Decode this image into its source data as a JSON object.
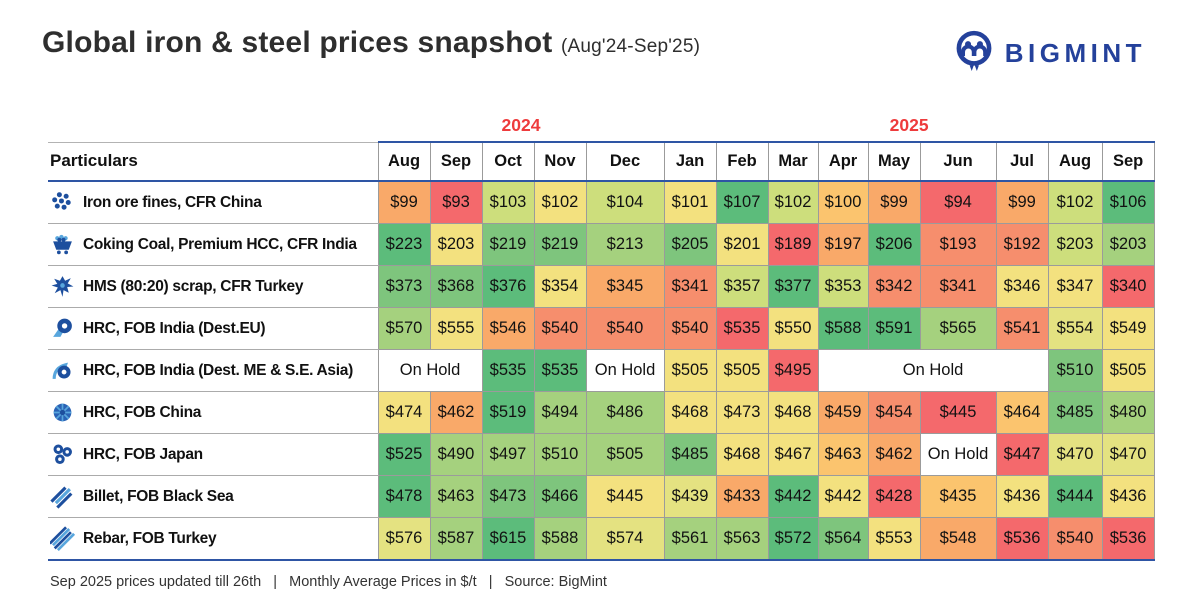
{
  "header": {
    "title": "Global iron & steel prices snapshot",
    "subtitle": "(Aug'24-Sep'25)",
    "brand": "BIGMINT"
  },
  "colors": {
    "accent_red": "#ee3b3c",
    "brand_navy": "#24419b",
    "rule_blue": "#2e55a4",
    "rule_gray": "#9b9b9b",
    "palette": {
      "g1": "#5cbc7b",
      "g2": "#7ec57d",
      "g3": "#a5d17e",
      "g4": "#cdde7c",
      "y1": "#e4e281",
      "y2": "#f3e17f",
      "o1": "#fbc46e",
      "o2": "#f9a969",
      "o3": "#f68e6d",
      "r1": "#f4696c",
      "hold": "#ffffff"
    }
  },
  "table": {
    "corner_label": "Particulars",
    "year_groups": [
      {
        "label": "2024",
        "span": 5
      },
      {
        "label": "2025",
        "span": 9
      }
    ],
    "months": [
      "Aug",
      "Sep",
      "Oct",
      "Nov",
      "Dec",
      "Jan",
      "Feb",
      "Mar",
      "Apr",
      "May",
      "Jun",
      "Jul",
      "Aug",
      "Sep"
    ],
    "rows": [
      {
        "icon": "iron-ore-icon",
        "label": "Iron ore fines, CFR China",
        "cells": [
          {
            "v": "$99",
            "c": "o2"
          },
          {
            "v": "$93",
            "c": "r1"
          },
          {
            "v": "$103",
            "c": "g4"
          },
          {
            "v": "$102",
            "c": "y2"
          },
          {
            "v": "$104",
            "c": "g4"
          },
          {
            "v": "$101",
            "c": "y2"
          },
          {
            "v": "$107",
            "c": "g1"
          },
          {
            "v": "$102",
            "c": "g4"
          },
          {
            "v": "$100",
            "c": "o1"
          },
          {
            "v": "$99",
            "c": "o2"
          },
          {
            "v": "$94",
            "c": "r1"
          },
          {
            "v": "$99",
            "c": "o2"
          },
          {
            "v": "$102",
            "c": "g4"
          },
          {
            "v": "$106",
            "c": "g1"
          }
        ]
      },
      {
        "icon": "coal-cart-icon",
        "label": "Coking Coal, Premium HCC, CFR India",
        "cells": [
          {
            "v": "$223",
            "c": "g1"
          },
          {
            "v": "$203",
            "c": "y2"
          },
          {
            "v": "$219",
            "c": "g2"
          },
          {
            "v": "$219",
            "c": "g2"
          },
          {
            "v": "$213",
            "c": "g3"
          },
          {
            "v": "$205",
            "c": "g2"
          },
          {
            "v": "$201",
            "c": "y2"
          },
          {
            "v": "$189",
            "c": "r1"
          },
          {
            "v": "$197",
            "c": "o2"
          },
          {
            "v": "$206",
            "c": "g1"
          },
          {
            "v": "$193",
            "c": "o3"
          },
          {
            "v": "$192",
            "c": "o3"
          },
          {
            "v": "$203",
            "c": "g4"
          },
          {
            "v": "$203",
            "c": "g3"
          }
        ]
      },
      {
        "icon": "scrap-icon",
        "label": "HMS (80:20) scrap, CFR Turkey",
        "cells": [
          {
            "v": "$373",
            "c": "g2"
          },
          {
            "v": "$368",
            "c": "g2"
          },
          {
            "v": "$376",
            "c": "g1"
          },
          {
            "v": "$354",
            "c": "y2"
          },
          {
            "v": "$345",
            "c": "o2"
          },
          {
            "v": "$341",
            "c": "o3"
          },
          {
            "v": "$357",
            "c": "g4"
          },
          {
            "v": "$377",
            "c": "g1"
          },
          {
            "v": "$353",
            "c": "g4"
          },
          {
            "v": "$342",
            "c": "o3"
          },
          {
            "v": "$341",
            "c": "o3"
          },
          {
            "v": "$346",
            "c": "y2"
          },
          {
            "v": "$347",
            "c": "y2"
          },
          {
            "v": "$340",
            "c": "r1"
          }
        ]
      },
      {
        "icon": "coil-icon",
        "label": "HRC, FOB India (Dest.EU)",
        "cells": [
          {
            "v": "$570",
            "c": "g3"
          },
          {
            "v": "$555",
            "c": "y2"
          },
          {
            "v": "$546",
            "c": "o2"
          },
          {
            "v": "$540",
            "c": "o3"
          },
          {
            "v": "$540",
            "c": "o3"
          },
          {
            "v": "$540",
            "c": "o3"
          },
          {
            "v": "$535",
            "c": "r1"
          },
          {
            "v": "$550",
            "c": "y2"
          },
          {
            "v": "$588",
            "c": "g1"
          },
          {
            "v": "$591",
            "c": "g1"
          },
          {
            "v": "$565",
            "c": "g3"
          },
          {
            "v": "$541",
            "c": "o3"
          },
          {
            "v": "$554",
            "c": "y1"
          },
          {
            "v": "$549",
            "c": "y2"
          }
        ]
      },
      {
        "icon": "coil-arrow-icon",
        "label": "HRC, FOB India (Dest. ME & S.E. Asia)",
        "cells": [
          {
            "v": "On Hold",
            "c": "hold",
            "span": 2
          },
          {
            "v": "$535",
            "c": "g1"
          },
          {
            "v": "$535",
            "c": "g1"
          },
          {
            "v": "On Hold",
            "c": "hold"
          },
          {
            "v": "$505",
            "c": "y2"
          },
          {
            "v": "$505",
            "c": "y2"
          },
          {
            "v": "$495",
            "c": "r1"
          },
          {
            "v": "On Hold",
            "c": "hold",
            "span": 4
          },
          {
            "v": "$510",
            "c": "g2"
          },
          {
            "v": "$505",
            "c": "y2"
          }
        ]
      },
      {
        "icon": "coil-end-icon",
        "label": "HRC, FOB China",
        "cells": [
          {
            "v": "$474",
            "c": "y2"
          },
          {
            "v": "$462",
            "c": "o2"
          },
          {
            "v": "$519",
            "c": "g1"
          },
          {
            "v": "$494",
            "c": "g3"
          },
          {
            "v": "$486",
            "c": "g3"
          },
          {
            "v": "$468",
            "c": "y2"
          },
          {
            "v": "$473",
            "c": "y2"
          },
          {
            "v": "$468",
            "c": "y2"
          },
          {
            "v": "$459",
            "c": "o2"
          },
          {
            "v": "$454",
            "c": "o3"
          },
          {
            "v": "$445",
            "c": "r1"
          },
          {
            "v": "$464",
            "c": "o1"
          },
          {
            "v": "$485",
            "c": "g2"
          },
          {
            "v": "$480",
            "c": "g3"
          }
        ]
      },
      {
        "icon": "three-coils-icon",
        "label": "HRC, FOB Japan",
        "cells": [
          {
            "v": "$525",
            "c": "g1"
          },
          {
            "v": "$490",
            "c": "g3"
          },
          {
            "v": "$497",
            "c": "g3"
          },
          {
            "v": "$510",
            "c": "g3"
          },
          {
            "v": "$505",
            "c": "g3"
          },
          {
            "v": "$485",
            "c": "g2"
          },
          {
            "v": "$468",
            "c": "y2"
          },
          {
            "v": "$467",
            "c": "y2"
          },
          {
            "v": "$463",
            "c": "o1"
          },
          {
            "v": "$462",
            "c": "o2"
          },
          {
            "v": "On Hold",
            "c": "hold"
          },
          {
            "v": "$447",
            "c": "r1"
          },
          {
            "v": "$470",
            "c": "y1"
          },
          {
            "v": "$470",
            "c": "y1"
          }
        ]
      },
      {
        "icon": "billet-icon",
        "label": "Billet, FOB Black Sea",
        "cells": [
          {
            "v": "$478",
            "c": "g1"
          },
          {
            "v": "$463",
            "c": "g3"
          },
          {
            "v": "$473",
            "c": "g2"
          },
          {
            "v": "$466",
            "c": "g2"
          },
          {
            "v": "$445",
            "c": "y2"
          },
          {
            "v": "$439",
            "c": "y1"
          },
          {
            "v": "$433",
            "c": "o2"
          },
          {
            "v": "$442",
            "c": "g1"
          },
          {
            "v": "$442",
            "c": "y2"
          },
          {
            "v": "$428",
            "c": "r1"
          },
          {
            "v": "$435",
            "c": "o1"
          },
          {
            "v": "$436",
            "c": "y2"
          },
          {
            "v": "$444",
            "c": "g1"
          },
          {
            "v": "$436",
            "c": "y2"
          }
        ]
      },
      {
        "icon": "rebar-icon",
        "label": "Rebar, FOB Turkey",
        "cells": [
          {
            "v": "$576",
            "c": "y1"
          },
          {
            "v": "$587",
            "c": "g3"
          },
          {
            "v": "$615",
            "c": "g1"
          },
          {
            "v": "$588",
            "c": "g3"
          },
          {
            "v": "$574",
            "c": "y1"
          },
          {
            "v": "$561",
            "c": "g3"
          },
          {
            "v": "$563",
            "c": "g3"
          },
          {
            "v": "$572",
            "c": "g1"
          },
          {
            "v": "$564",
            "c": "g2"
          },
          {
            "v": "$553",
            "c": "y2"
          },
          {
            "v": "$548",
            "c": "o2"
          },
          {
            "v": "$536",
            "c": "r1"
          },
          {
            "v": "$540",
            "c": "o3"
          },
          {
            "v": "$536",
            "c": "r1"
          }
        ]
      }
    ]
  },
  "footer": {
    "text": "Sep 2025 prices updated till 26th   |   Monthly Average Prices in $/t   |   Source: BigMint"
  },
  "chart_data": {
    "type": "heatmap",
    "title": "Global iron & steel prices snapshot (Aug'24-Sep'25)",
    "unit": "$/t",
    "columns": [
      "Aug'24",
      "Sep'24",
      "Oct'24",
      "Nov'24",
      "Dec'24",
      "Jan'25",
      "Feb'25",
      "Mar'25",
      "Apr'25",
      "May'25",
      "Jun'25",
      "Jul'25",
      "Aug'25",
      "Sep'25"
    ],
    "rows": [
      {
        "name": "Iron ore fines, CFR China",
        "values": [
          99,
          93,
          103,
          102,
          104,
          101,
          107,
          102,
          100,
          99,
          94,
          99,
          102,
          106
        ]
      },
      {
        "name": "Coking Coal, Premium HCC, CFR India",
        "values": [
          223,
          203,
          219,
          219,
          213,
          205,
          201,
          189,
          197,
          206,
          193,
          192,
          203,
          203
        ]
      },
      {
        "name": "HMS (80:20) scrap, CFR Turkey",
        "values": [
          373,
          368,
          376,
          354,
          345,
          341,
          357,
          377,
          353,
          342,
          341,
          346,
          347,
          340
        ]
      },
      {
        "name": "HRC, FOB India (Dest.EU)",
        "values": [
          570,
          555,
          546,
          540,
          540,
          540,
          535,
          550,
          588,
          591,
          565,
          541,
          554,
          549
        ]
      },
      {
        "name": "HRC, FOB India (Dest. ME & S.E. Asia)",
        "values": [
          "On Hold",
          "On Hold",
          535,
          535,
          "On Hold",
          505,
          505,
          495,
          "On Hold",
          "On Hold",
          "On Hold",
          "On Hold",
          510,
          505
        ]
      },
      {
        "name": "HRC, FOB China",
        "values": [
          474,
          462,
          519,
          494,
          486,
          468,
          473,
          468,
          459,
          454,
          445,
          464,
          485,
          480
        ]
      },
      {
        "name": "HRC, FOB Japan",
        "values": [
          525,
          490,
          497,
          510,
          505,
          485,
          468,
          467,
          463,
          462,
          "On Hold",
          447,
          470,
          470
        ]
      },
      {
        "name": "Billet, FOB Black Sea",
        "values": [
          478,
          463,
          473,
          466,
          445,
          439,
          433,
          442,
          442,
          428,
          435,
          436,
          444,
          436
        ]
      },
      {
        "name": "Rebar, FOB Turkey",
        "values": [
          576,
          587,
          615,
          588,
          574,
          561,
          563,
          572,
          564,
          553,
          548,
          536,
          540,
          536
        ]
      }
    ],
    "color_scale": "red (low) → yellow → green (high), per row",
    "legend_position": "none",
    "grid": true
  }
}
